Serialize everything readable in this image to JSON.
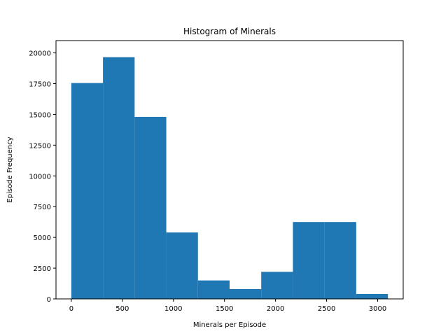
{
  "chart_data": {
    "type": "bar",
    "title": "Histogram of Minerals",
    "xlabel": "Minerals per Episode",
    "ylabel": "Episode Frequency",
    "bin_edges": [
      0,
      310,
      620,
      930,
      1240,
      1550,
      1860,
      2170,
      2480,
      2790,
      3100
    ],
    "values": [
      17550,
      19650,
      14800,
      5400,
      1500,
      800,
      2200,
      6250,
      6250,
      400
    ],
    "xlim": [
      -150,
      3250
    ],
    "ylim": [
      0,
      21000
    ],
    "xticks": [
      0,
      500,
      1000,
      1500,
      2000,
      2500,
      3000
    ],
    "yticks": [
      0,
      2500,
      5000,
      7500,
      10000,
      12500,
      15000,
      17500,
      20000
    ],
    "bar_color": "#1f77b4",
    "grid": false,
    "legend": "none"
  }
}
